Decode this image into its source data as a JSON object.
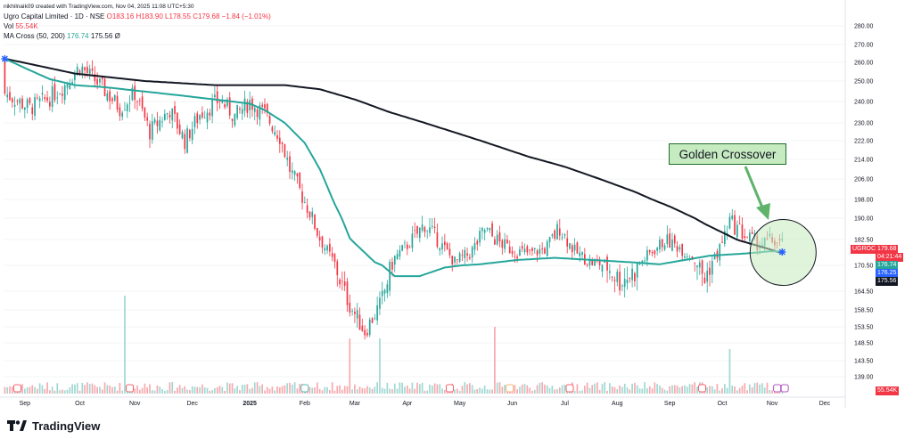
{
  "header": {
    "line1": "nikhilnaik09 created with TradingView.com, Nov 04, 2025 11:08 UTC+5:30",
    "title_prefix": "Ugro Capital Limited · 1D · NSE",
    "ohlc": {
      "o": "O183.16",
      "h": "H183.90",
      "l": "L178.55",
      "c": "C179.68",
      "chg": "−1.84 (−1.01%)"
    },
    "vol_label": "Vol",
    "vol_value": "55.54K",
    "ma_label": "MA Cross (50, 200)",
    "ma50_value": "176.74",
    "ma200_value": "175.56",
    "ma_suffix": "Ø"
  },
  "annotation": {
    "text": "Golden Crossover"
  },
  "price_tags": {
    "symbol": "UGROCAP",
    "last": "179.68",
    "countdown": "04:21:44",
    "ma50": "176.74",
    "tag2": "176.25",
    "ma200": "175.56",
    "volume": "55.54K"
  },
  "colors": {
    "up": "#26a69a",
    "down": "#f23645",
    "ma50": "#26a69a",
    "ma200": "#131722",
    "vol_up": "#9fd8d2",
    "vol_down": "#f7a9ae",
    "annotation_fill": "#c7ebc0"
  },
  "footer": {
    "brand": "TradingView"
  },
  "chart_data": {
    "type": "candlestick",
    "title": "Ugro Capital Limited · 1D · NSE",
    "y_ticks": [
      280.0,
      270.0,
      260.0,
      250.0,
      240.0,
      230.0,
      222.0,
      214.0,
      206.0,
      198.0,
      190.0,
      182.5,
      170.5,
      164.5,
      158.5,
      153.5,
      148.5,
      143.5,
      139.0
    ],
    "x_ticks": [
      "Sep",
      "Oct",
      "Nov",
      "Dec",
      "2025",
      "Feb",
      "Mar",
      "Apr",
      "May",
      "Jun",
      "Jul",
      "Aug",
      "Sep",
      "Oct",
      "Nov",
      "Dec"
    ],
    "x_tick_index": [
      8,
      30,
      52,
      75,
      98,
      120,
      140,
      161,
      182,
      203,
      224,
      245,
      266,
      287,
      307,
      328
    ],
    "ma200": [
      [
        0,
        262
      ],
      [
        14,
        258
      ],
      [
        28,
        254
      ],
      [
        42,
        252
      ],
      [
        56,
        250
      ],
      [
        70,
        249
      ],
      [
        84,
        248
      ],
      [
        98,
        248
      ],
      [
        112,
        248
      ],
      [
        126,
        246
      ],
      [
        140,
        241
      ],
      [
        154,
        235
      ],
      [
        168,
        230
      ],
      [
        182,
        225
      ],
      [
        196,
        220
      ],
      [
        210,
        215
      ],
      [
        224,
        211
      ],
      [
        238,
        206
      ],
      [
        252,
        201
      ],
      [
        266,
        195
      ],
      [
        280,
        188
      ],
      [
        294,
        182
      ],
      [
        306,
        178
      ],
      [
        311,
        176
      ]
    ],
    "ma50": [
      [
        0,
        262
      ],
      [
        8,
        257
      ],
      [
        18,
        251
      ],
      [
        28,
        248
      ],
      [
        40,
        247
      ],
      [
        55,
        245
      ],
      [
        70,
        243
      ],
      [
        84,
        241
      ],
      [
        98,
        239
      ],
      [
        104,
        236
      ],
      [
        112,
        230
      ],
      [
        120,
        221
      ],
      [
        126,
        210
      ],
      [
        132,
        196
      ],
      [
        138,
        183
      ],
      [
        148,
        172
      ],
      [
        156,
        168
      ],
      [
        166,
        168
      ],
      [
        176,
        170
      ],
      [
        190,
        171
      ],
      [
        205,
        173
      ],
      [
        220,
        174
      ],
      [
        235,
        173
      ],
      [
        250,
        172
      ],
      [
        262,
        171
      ],
      [
        272,
        173
      ],
      [
        282,
        175
      ],
      [
        296,
        176
      ],
      [
        306,
        177
      ],
      [
        311,
        177
      ]
    ],
    "ohlc": [],
    "annotations": [
      "Golden Crossover"
    ]
  }
}
